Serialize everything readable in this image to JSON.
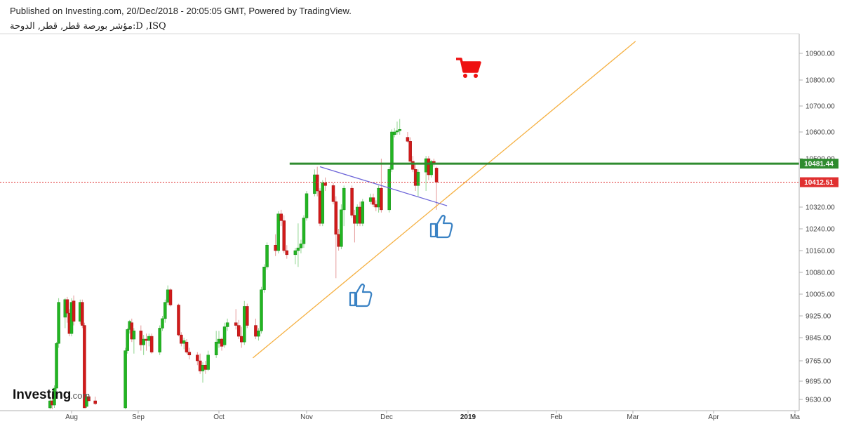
{
  "header": {
    "published": "Published on Investing.com, 20/Dec/2018 - 20:05:05 GMT, Powered by TradingView.",
    "symbol": "مؤشر بورصة قطر, قطر, الدوحة:D ,ISQ"
  },
  "logo": {
    "main": "Investing",
    "sub": ".com"
  },
  "colors": {
    "up": "#22b522",
    "down": "#d11a1a",
    "support_line": "#f5b041",
    "trend_line": "#6b63d8",
    "resistance_line": "#2e8b2e",
    "current_line": "#e03030",
    "icon_blue": "#3a82c4",
    "cart_red": "#ee1111"
  },
  "icons": [
    "shopping-cart-icon",
    "thumbs-up-icon",
    "thumbs-up-icon"
  ],
  "chart_data": {
    "type": "candlestick",
    "title": "",
    "xlabel": "",
    "ylabel": "",
    "ylim": [
      9595,
      10960
    ],
    "y_ticks": [
      {
        "label": "10900.00",
        "value": 10900
      },
      {
        "label": "10800.00",
        "value": 10800
      },
      {
        "label": "10700.00",
        "value": 10700
      },
      {
        "label": "10600.00",
        "value": 10600
      },
      {
        "label": "10500.00",
        "value": 10500
      },
      {
        "label": "10320.00",
        "value": 10320
      },
      {
        "label": "10240.00",
        "value": 10240
      },
      {
        "label": "10160.00",
        "value": 10160
      },
      {
        "label": "10080.00",
        "value": 10080
      },
      {
        "label": "10005.00",
        "value": 10005
      },
      {
        "label": "9925.00",
        "value": 9925
      },
      {
        "label": "9845.00",
        "value": 9845
      },
      {
        "label": "9765.00",
        "value": 9765
      },
      {
        "label": "9695.00",
        "value": 9695
      },
      {
        "label": "9630.00",
        "value": 9630
      }
    ],
    "x_ticks": [
      {
        "label": "Aug",
        "date": "2018-08-01",
        "bold": false
      },
      {
        "label": "Sep",
        "date": "2018-09-01",
        "bold": false
      },
      {
        "label": "Oct",
        "date": "2018-10-01",
        "bold": false
      },
      {
        "label": "Nov",
        "date": "2018-11-01",
        "bold": false
      },
      {
        "label": "Dec",
        "date": "2018-12-01",
        "bold": false
      },
      {
        "label": "2019",
        "date": "2019-01-01",
        "bold": true
      },
      {
        "label": "Feb",
        "date": "2019-02-01",
        "bold": false
      },
      {
        "label": "Mar",
        "date": "2019-03-01",
        "bold": false
      },
      {
        "label": "Apr",
        "date": "2019-04-01",
        "bold": false
      },
      {
        "label": "Ma",
        "date": "2019-05-01",
        "bold": false
      }
    ],
    "price_labels": [
      {
        "text": "10481.44",
        "value": 10481.44,
        "kind": "resistance"
      },
      {
        "text": "10412.51",
        "value": 10412.51,
        "kind": "last"
      }
    ],
    "candles": [
      {
        "date": "2018-07-22",
        "o": 9600,
        "h": 9640,
        "l": 9585,
        "c": 9625
      },
      {
        "date": "2018-07-23",
        "o": 9625,
        "h": 9650,
        "l": 9595,
        "c": 9610
      },
      {
        "date": "2018-07-24",
        "o": 9610,
        "h": 9680,
        "l": 9600,
        "c": 9670
      },
      {
        "date": "2018-07-25",
        "o": 9670,
        "h": 9830,
        "l": 9660,
        "c": 9825
      },
      {
        "date": "2018-07-26",
        "o": 9825,
        "h": 9990,
        "l": 9810,
        "c": 9975
      },
      {
        "date": "2018-07-29",
        "o": 9920,
        "h": 9990,
        "l": 9880,
        "c": 9985
      },
      {
        "date": "2018-07-30",
        "o": 9985,
        "h": 9995,
        "l": 9900,
        "c": 9935
      },
      {
        "date": "2018-07-31",
        "o": 9935,
        "h": 9950,
        "l": 9850,
        "c": 9860
      },
      {
        "date": "2018-08-01",
        "o": 9860,
        "h": 9990,
        "l": 9850,
        "c": 9975
      },
      {
        "date": "2018-08-02",
        "o": 9980,
        "h": 10000,
        "l": 9890,
        "c": 9905
      },
      {
        "date": "2018-08-05",
        "o": 9905,
        "h": 9985,
        "l": 9895,
        "c": 9975
      },
      {
        "date": "2018-08-06",
        "o": 9975,
        "h": 9985,
        "l": 9880,
        "c": 9890
      },
      {
        "date": "2018-08-07",
        "o": 9890,
        "h": 9900,
        "l": 9600,
        "c": 9600
      },
      {
        "date": "2018-08-08",
        "o": 9605,
        "h": 9650,
        "l": 9600,
        "c": 9640
      },
      {
        "date": "2018-08-09",
        "o": 9640,
        "h": 9650,
        "l": 9625,
        "c": 9625
      },
      {
        "date": "2018-08-12",
        "o": 9625,
        "h": 9640,
        "l": 9610,
        "c": 9615
      },
      {
        "date": "2018-08-26",
        "o": 9600,
        "h": 9810,
        "l": 9595,
        "c": 9800
      },
      {
        "date": "2018-08-27",
        "o": 9800,
        "h": 9880,
        "l": 9790,
        "c": 9875
      },
      {
        "date": "2018-08-28",
        "o": 9875,
        "h": 9910,
        "l": 9860,
        "c": 9905
      },
      {
        "date": "2018-08-29",
        "o": 9900,
        "h": 9915,
        "l": 9830,
        "c": 9840
      },
      {
        "date": "2018-08-30",
        "o": 9840,
        "h": 9880,
        "l": 9790,
        "c": 9870
      },
      {
        "date": "2018-09-02",
        "o": 9870,
        "h": 9890,
        "l": 9800,
        "c": 9820
      },
      {
        "date": "2018-09-03",
        "o": 9820,
        "h": 9855,
        "l": 9785,
        "c": 9840
      },
      {
        "date": "2018-09-04",
        "o": 9840,
        "h": 9860,
        "l": 9800,
        "c": 9835
      },
      {
        "date": "2018-09-05",
        "o": 9835,
        "h": 9860,
        "l": 9815,
        "c": 9850
      },
      {
        "date": "2018-09-06",
        "o": 9850,
        "h": 9860,
        "l": 9790,
        "c": 9795
      },
      {
        "date": "2018-09-09",
        "o": 9795,
        "h": 9890,
        "l": 9785,
        "c": 9880
      },
      {
        "date": "2018-09-10",
        "o": 9880,
        "h": 9925,
        "l": 9870,
        "c": 9915
      },
      {
        "date": "2018-09-11",
        "o": 9915,
        "h": 9985,
        "l": 9900,
        "c": 9975
      },
      {
        "date": "2018-09-12",
        "o": 9975,
        "h": 10035,
        "l": 9965,
        "c": 10020
      },
      {
        "date": "2018-09-13",
        "o": 10020,
        "h": 10025,
        "l": 9960,
        "c": 9965
      },
      {
        "date": "2018-09-16",
        "o": 9965,
        "h": 9970,
        "l": 9850,
        "c": 9855
      },
      {
        "date": "2018-09-17",
        "o": 9855,
        "h": 9865,
        "l": 9815,
        "c": 9825
      },
      {
        "date": "2018-09-18",
        "o": 9825,
        "h": 9845,
        "l": 9805,
        "c": 9835
      },
      {
        "date": "2018-09-19",
        "o": 9830,
        "h": 9840,
        "l": 9790,
        "c": 9795
      },
      {
        "date": "2018-09-20",
        "o": 9795,
        "h": 9810,
        "l": 9770,
        "c": 9785
      },
      {
        "date": "2018-09-23",
        "o": 9785,
        "h": 9795,
        "l": 9750,
        "c": 9765
      },
      {
        "date": "2018-09-24",
        "o": 9765,
        "h": 9790,
        "l": 9720,
        "c": 9730
      },
      {
        "date": "2018-09-25",
        "o": 9730,
        "h": 9760,
        "l": 9690,
        "c": 9750
      },
      {
        "date": "2018-09-26",
        "o": 9750,
        "h": 9765,
        "l": 9720,
        "c": 9735
      },
      {
        "date": "2018-09-27",
        "o": 9735,
        "h": 9800,
        "l": 9730,
        "c": 9785
      },
      {
        "date": "2018-09-30",
        "o": 9785,
        "h": 9870,
        "l": 9775,
        "c": 9830
      },
      {
        "date": "2018-10-01",
        "o": 9825,
        "h": 9870,
        "l": 9810,
        "c": 9840
      },
      {
        "date": "2018-10-02",
        "o": 9840,
        "h": 9845,
        "l": 9800,
        "c": 9815
      },
      {
        "date": "2018-10-03",
        "o": 9820,
        "h": 9900,
        "l": 9810,
        "c": 9885
      },
      {
        "date": "2018-10-04",
        "o": 9885,
        "h": 9915,
        "l": 9870,
        "c": 9900
      },
      {
        "date": "2018-10-07",
        "o": 9900,
        "h": 9950,
        "l": 9875,
        "c": 9890
      },
      {
        "date": "2018-10-08",
        "o": 9890,
        "h": 9910,
        "l": 9840,
        "c": 9850
      },
      {
        "date": "2018-10-09",
        "o": 9850,
        "h": 9885,
        "l": 9810,
        "c": 9830
      },
      {
        "date": "2018-10-10",
        "o": 9830,
        "h": 9980,
        "l": 9820,
        "c": 9960
      },
      {
        "date": "2018-10-11",
        "o": 9960,
        "h": 9970,
        "l": 9880,
        "c": 9890
      },
      {
        "date": "2018-10-14",
        "o": 9890,
        "h": 9915,
        "l": 9840,
        "c": 9850
      },
      {
        "date": "2018-10-15",
        "o": 9850,
        "h": 9880,
        "l": 9835,
        "c": 9870
      },
      {
        "date": "2018-10-16",
        "o": 9870,
        "h": 10030,
        "l": 9860,
        "c": 10020
      },
      {
        "date": "2018-10-17",
        "o": 10020,
        "h": 10110,
        "l": 10010,
        "c": 10100
      },
      {
        "date": "2018-10-18",
        "o": 10100,
        "h": 10190,
        "l": 10090,
        "c": 10180
      },
      {
        "date": "2018-10-21",
        "o": 10180,
        "h": 10220,
        "l": 10140,
        "c": 10160
      },
      {
        "date": "2018-10-22",
        "o": 10160,
        "h": 10305,
        "l": 10150,
        "c": 10295
      },
      {
        "date": "2018-10-23",
        "o": 10295,
        "h": 10310,
        "l": 10250,
        "c": 10270
      },
      {
        "date": "2018-10-24",
        "o": 10270,
        "h": 10290,
        "l": 10150,
        "c": 10160
      },
      {
        "date": "2018-10-25",
        "o": 10160,
        "h": 10180,
        "l": 10130,
        "c": 10145
      },
      {
        "date": "2018-10-28",
        "o": 10145,
        "h": 10170,
        "l": 10110,
        "c": 10160
      },
      {
        "date": "2018-10-29",
        "o": 10160,
        "h": 10260,
        "l": 10100,
        "c": 10170
      },
      {
        "date": "2018-10-30",
        "o": 10170,
        "h": 10200,
        "l": 10150,
        "c": 10185
      },
      {
        "date": "2018-10-31",
        "o": 10185,
        "h": 10290,
        "l": 10170,
        "c": 10280
      },
      {
        "date": "2018-11-01",
        "o": 10280,
        "h": 10380,
        "l": 10270,
        "c": 10370
      },
      {
        "date": "2018-11-04",
        "o": 10370,
        "h": 10460,
        "l": 10360,
        "c": 10440
      },
      {
        "date": "2018-11-05",
        "o": 10440,
        "h": 10470,
        "l": 10360,
        "c": 10380
      },
      {
        "date": "2018-11-06",
        "o": 10380,
        "h": 10390,
        "l": 10250,
        "c": 10260
      },
      {
        "date": "2018-11-07",
        "o": 10260,
        "h": 10420,
        "l": 10250,
        "c": 10410
      },
      {
        "date": "2018-11-08",
        "o": 10410,
        "h": 10430,
        "l": 10380,
        "c": 10400
      },
      {
        "date": "2018-11-11",
        "o": 10400,
        "h": 10410,
        "l": 10330,
        "c": 10340
      },
      {
        "date": "2018-11-12",
        "o": 10340,
        "h": 10360,
        "l": 10060,
        "c": 10220
      },
      {
        "date": "2018-11-13",
        "o": 10220,
        "h": 10240,
        "l": 10160,
        "c": 10175
      },
      {
        "date": "2018-11-14",
        "o": 10175,
        "h": 10330,
        "l": 10165,
        "c": 10310
      },
      {
        "date": "2018-11-15",
        "o": 10310,
        "h": 10400,
        "l": 10250,
        "c": 10390
      },
      {
        "date": "2018-11-18",
        "o": 10390,
        "h": 10400,
        "l": 10280,
        "c": 10290
      },
      {
        "date": "2018-11-19",
        "o": 10290,
        "h": 10310,
        "l": 10190,
        "c": 10260
      },
      {
        "date": "2018-11-20",
        "o": 10260,
        "h": 10330,
        "l": 10250,
        "c": 10320
      },
      {
        "date": "2018-11-21",
        "o": 10320,
        "h": 10340,
        "l": 10250,
        "c": 10260
      },
      {
        "date": "2018-11-22",
        "o": 10260,
        "h": 10350,
        "l": 10250,
        "c": 10340
      },
      {
        "date": "2018-11-25",
        "o": 10340,
        "h": 10370,
        "l": 10330,
        "c": 10355
      },
      {
        "date": "2018-11-26",
        "o": 10355,
        "h": 10370,
        "l": 10320,
        "c": 10330
      },
      {
        "date": "2018-11-27",
        "o": 10330,
        "h": 10345,
        "l": 10305,
        "c": 10320
      },
      {
        "date": "2018-11-28",
        "o": 10320,
        "h": 10400,
        "l": 10300,
        "c": 10390
      },
      {
        "date": "2018-11-29",
        "o": 10390,
        "h": 10500,
        "l": 10300,
        "c": 10310
      },
      {
        "date": "2018-12-02",
        "o": 10310,
        "h": 10470,
        "l": 10300,
        "c": 10460
      },
      {
        "date": "2018-12-03",
        "o": 10460,
        "h": 10610,
        "l": 10450,
        "c": 10600
      },
      {
        "date": "2018-12-04",
        "o": 10590,
        "h": 10615,
        "l": 10580,
        "c": 10600
      },
      {
        "date": "2018-12-05",
        "o": 10600,
        "h": 10640,
        "l": 10590,
        "c": 10605
      },
      {
        "date": "2018-12-06",
        "o": 10605,
        "h": 10650,
        "l": 10590,
        "c": 10610
      },
      {
        "date": "2018-12-09",
        "o": 10580,
        "h": 10600,
        "l": 10560,
        "c": 10565
      },
      {
        "date": "2018-12-10",
        "o": 10565,
        "h": 10580,
        "l": 10480,
        "c": 10490
      },
      {
        "date": "2018-12-11",
        "o": 10490,
        "h": 10510,
        "l": 10450,
        "c": 10460
      },
      {
        "date": "2018-12-12",
        "o": 10460,
        "h": 10480,
        "l": 10380,
        "c": 10400
      },
      {
        "date": "2018-12-13",
        "o": 10400,
        "h": 10460,
        "l": 10360,
        "c": 10450
      },
      {
        "date": "2018-12-16",
        "o": 10450,
        "h": 10510,
        "l": 10380,
        "c": 10500
      },
      {
        "date": "2018-12-17",
        "o": 10500,
        "h": 10510,
        "l": 10420,
        "c": 10440
      },
      {
        "date": "2018-12-18",
        "o": 10440,
        "h": 10495,
        "l": 10430,
        "c": 10490
      },
      {
        "date": "2018-12-19",
        "o": 10490,
        "h": 10500,
        "l": 10470,
        "c": 10480
      },
      {
        "date": "2018-12-20",
        "o": 10465,
        "h": 10470,
        "l": 10310,
        "c": 10412.51
      }
    ],
    "drawings": {
      "resistance_line": {
        "value": 10481.44,
        "from": "2018-10-26",
        "to": "2019-05-05"
      },
      "current_price_line": {
        "value": 10412.51
      },
      "support_trendline": {
        "from": {
          "date": "2018-10-13",
          "value": 9775
        },
        "to": {
          "date": "2019-03-02",
          "value": 10945
        }
      },
      "down_trendline": {
        "from": {
          "date": "2018-11-06",
          "value": 10470
        },
        "to": {
          "date": "2018-12-24",
          "value": 10325
        }
      }
    }
  }
}
